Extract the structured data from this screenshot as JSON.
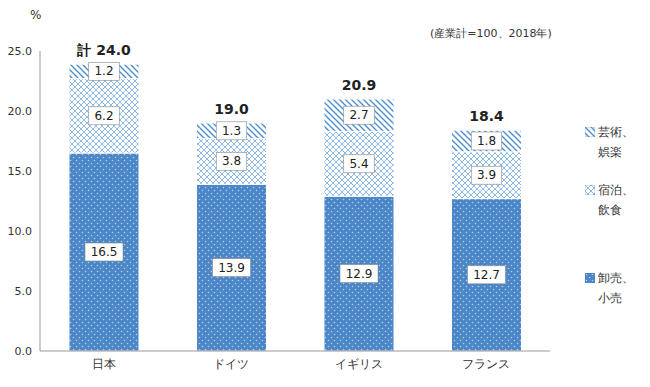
{
  "chart_data": {
    "type": "bar",
    "stacked": true,
    "data_labels": true,
    "grid": false,
    "y_label": "%",
    "annotations": [
      "(産業計=100、2018年)"
    ],
    "categories": [
      "日本",
      "ドイツ",
      "イギリス",
      "フランス"
    ],
    "series": [
      {
        "name": "卸売、小売",
        "color": "#4a86c8",
        "values": [
          16.5,
          13.9,
          12.9,
          12.7
        ]
      },
      {
        "name": "宿泊、飲食",
        "color": "#5b9bd5",
        "values": [
          6.2,
          3.8,
          5.4,
          3.9
        ]
      },
      {
        "name": "芸術、娯楽",
        "color": "#4f8fd0",
        "values": [
          1.2,
          1.3,
          2.7,
          1.8
        ]
      }
    ],
    "total_labels": [
      "計 24.0",
      "19.0",
      "20.9",
      "18.4"
    ],
    "ylim": [
      0,
      25
    ],
    "yticks": [
      {
        "value": 0,
        "label": "0.0"
      },
      {
        "value": 5,
        "label": "5.0"
      },
      {
        "value": 10,
        "label": "10.0"
      },
      {
        "value": 15,
        "label": "15.0"
      },
      {
        "value": 20,
        "label": "20.0"
      },
      {
        "value": 25,
        "label": "25.0"
      }
    ]
  }
}
